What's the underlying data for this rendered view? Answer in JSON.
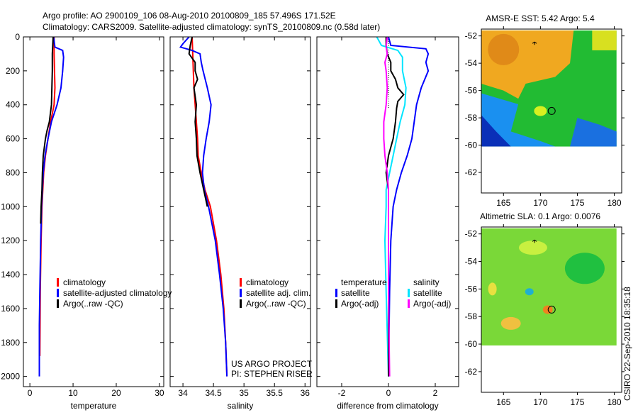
{
  "title_line1": "Argo profile: AO 2900109_106 08-Aug-2010 20100809_185 57.496S 171.52E",
  "title_line2": "Climatology: CARS2009. Satellite-adjusted climatology: synTS_20100809.nc (0.58d later)",
  "footer_stamp": "CSIRO 22-Sep-2010 18:35:18",
  "colors": {
    "climatology": "#ff0000",
    "satellite": "#0000ff",
    "argo": "#000000",
    "sal_satellite": "#00e5ff",
    "sal_argo": "#ff00ff"
  },
  "chart_data": [
    {
      "type": "line",
      "id": "temperature",
      "xlabel": "temperature",
      "xlim": [
        -1.5,
        31
      ],
      "ylim": [
        0,
        2060
      ],
      "y_reversed": true,
      "xticks": [
        0,
        10,
        20,
        30
      ],
      "yticks": [
        0,
        200,
        400,
        600,
        800,
        1000,
        1200,
        1400,
        1600,
        1800,
        2000
      ],
      "legend": [
        "climatology",
        "satellite-adjusted climatology",
        "Argo(..raw -QC)"
      ],
      "series": [
        {
          "name": "climatology",
          "color": "#ff0000",
          "depth": [
            0,
            100,
            200,
            300,
            400,
            500,
            600,
            700,
            800,
            1000,
            1200,
            1500,
            1880
          ],
          "values": [
            5.6,
            5.6,
            5.7,
            5.8,
            5.6,
            4.8,
            4.2,
            3.6,
            3.2,
            2.8,
            2.6,
            2.4,
            2.3
          ]
        },
        {
          "name": "satellite-adjusted climatology",
          "color": "#0000ff",
          "depth": [
            0,
            60,
            80,
            120,
            200,
            300,
            400,
            500,
            600,
            700,
            800,
            1000,
            1200,
            1500,
            1700,
            2000
          ],
          "values": [
            5.5,
            5.8,
            7.6,
            7.8,
            7.6,
            7.2,
            6.3,
            5.0,
            4.2,
            3.5,
            3.1,
            2.7,
            2.5,
            2.3,
            2.2,
            2.2
          ]
        },
        {
          "name": "Argo(..raw -QC)",
          "color": "#000000",
          "depth": [
            0,
            50,
            100,
            200,
            300,
            400,
            500,
            550,
            600,
            700,
            800,
            900,
            1000,
            1100
          ],
          "values": [
            5.4,
            5.3,
            5.2,
            5.2,
            5.1,
            5.0,
            4.5,
            4.0,
            3.6,
            3.1,
            2.9,
            2.8,
            2.6,
            2.5
          ]
        }
      ]
    },
    {
      "type": "line",
      "id": "salinity",
      "xlabel": "salinity",
      "xlim": [
        33.79,
        36.09
      ],
      "ylim": [
        0,
        2060
      ],
      "y_reversed": true,
      "xticks": [
        34,
        34.5,
        35,
        35.5,
        36
      ],
      "legend": [
        "climatology",
        "satellite adj. clim.",
        "Argo(..raw -QC)"
      ],
      "annotation": [
        "US ARGO PROJECT",
        "PI: STEPHEN RISER"
      ],
      "series": [
        {
          "name": "climatology",
          "color": "#ff0000",
          "depth": [
            0,
            100,
            200,
            300,
            400,
            500,
            600,
            700,
            800,
            900,
            1000,
            1200,
            1400,
            1600,
            1800,
            2000
          ],
          "values": [
            34.15,
            34.16,
            34.17,
            34.18,
            34.2,
            34.22,
            34.24,
            34.25,
            34.3,
            34.36,
            34.45,
            34.55,
            34.62,
            34.67,
            34.7,
            34.72
          ]
        },
        {
          "name": "satellite adj. clim.",
          "color": "#0000ff",
          "depth": [
            0,
            40,
            60,
            80,
            100,
            150,
            200,
            300,
            400,
            500,
            600,
            700,
            800,
            900,
            1000,
            1200,
            1400,
            1600,
            1800,
            2000
          ],
          "values": [
            34.1,
            34.0,
            33.96,
            34.15,
            34.28,
            34.3,
            34.33,
            34.4,
            34.46,
            34.43,
            34.38,
            34.34,
            34.32,
            34.35,
            34.42,
            34.53,
            34.6,
            34.66,
            34.7,
            34.72
          ]
        },
        {
          "name": "Argo(..raw -QC)",
          "color": "#000000",
          "depth": [
            0,
            50,
            100,
            150,
            200,
            250,
            300,
            400,
            500,
            600,
            700,
            800,
            900,
            1000
          ],
          "values": [
            34.15,
            34.12,
            34.1,
            34.2,
            34.2,
            34.24,
            34.18,
            34.22,
            34.2,
            34.22,
            34.23,
            34.28,
            34.34,
            34.4
          ]
        }
      ]
    },
    {
      "type": "line",
      "id": "difference",
      "xlabel": "difference from climatology",
      "xlim": [
        -3.06,
        3.0
      ],
      "ylim": [
        0,
        2060
      ],
      "y_reversed": true,
      "xticks": [
        -2,
        0,
        2
      ],
      "legend": {
        "temperature_title": "temperature",
        "salinity_title": "salinity",
        "temperature": [
          "satellite",
          "Argo(-adj)"
        ],
        "salinity": [
          "satellite",
          "Argo(-adj)"
        ]
      },
      "series": [
        {
          "name": "temperature satellite",
          "color": "#0000ff",
          "depth": [
            0,
            50,
            70,
            100,
            150,
            200,
            300,
            400,
            500,
            600,
            700,
            800,
            900,
            1000,
            1200,
            1500,
            2000
          ],
          "values": [
            0,
            0.1,
            1.6,
            1.7,
            1.6,
            1.7,
            1.4,
            1.2,
            1.1,
            1.0,
            0.8,
            0.55,
            0.35,
            0.2,
            0.1,
            0.05,
            0.0
          ]
        },
        {
          "name": "salinity satellite",
          "color": "#00e5ff",
          "depth": [
            0,
            50,
            80,
            120,
            200,
            300,
            400,
            500,
            600,
            700,
            800,
            900,
            1000,
            1200,
            1500,
            2000
          ],
          "values": [
            -0.5,
            -0.3,
            0.4,
            0.6,
            0.6,
            0.75,
            0.7,
            0.5,
            0.35,
            0.2,
            0.05,
            -0.1,
            -0.1,
            -0.15,
            -0.1,
            0.0
          ]
        },
        {
          "name": "temperature Argo(-adj)",
          "color": "#000000",
          "depth": [
            0,
            50,
            100,
            150,
            200,
            250,
            300,
            340,
            380,
            420,
            500,
            600,
            700,
            800,
            900,
            1000,
            1200,
            1500,
            2000
          ],
          "values": [
            -0.1,
            -0.1,
            -0.05,
            0.1,
            0.1,
            0.3,
            0.4,
            0.65,
            0.4,
            0.35,
            0.3,
            0.2,
            0.0,
            -0.1,
            0.0,
            0.0,
            0.0,
            0.0,
            0.0
          ]
        },
        {
          "name": "salinity Argo(-adj)",
          "color": "#ff00ff",
          "depth": [
            0,
            60,
            100,
            150,
            200,
            300,
            400,
            500,
            600,
            700,
            800,
            900,
            1000,
            1500,
            2000
          ],
          "values": [
            -0.05,
            -0.1,
            -0.05,
            -0.15,
            -0.1,
            -0.05,
            -0.1,
            -0.2,
            -0.2,
            -0.15,
            -0.05,
            0.0,
            0.0,
            0.0,
            0.05
          ]
        }
      ]
    },
    {
      "type": "heatmap",
      "id": "sst_map",
      "title": "AMSR-E SST: 5.42 Argo: 5.4",
      "xlim": [
        162,
        181
      ],
      "ylim": [
        -63.5,
        -51.5
      ],
      "xticks": [
        165,
        170,
        175,
        180
      ],
      "yticks": [
        -52,
        -54,
        -56,
        -58,
        -60,
        -62
      ],
      "argo_position": [
        171.52,
        -57.496
      ]
    },
    {
      "type": "heatmap",
      "id": "sla_map",
      "title": "Altimetric SLA: 0.1 Argo: 0.0076",
      "xlim": [
        162,
        181
      ],
      "ylim": [
        -63.5,
        -51.5
      ],
      "xticks": [
        165,
        170,
        175,
        180
      ],
      "yticks": [
        -52,
        -54,
        -56,
        -58,
        -60,
        -62
      ],
      "argo_position": [
        171.52,
        -57.496
      ]
    }
  ]
}
